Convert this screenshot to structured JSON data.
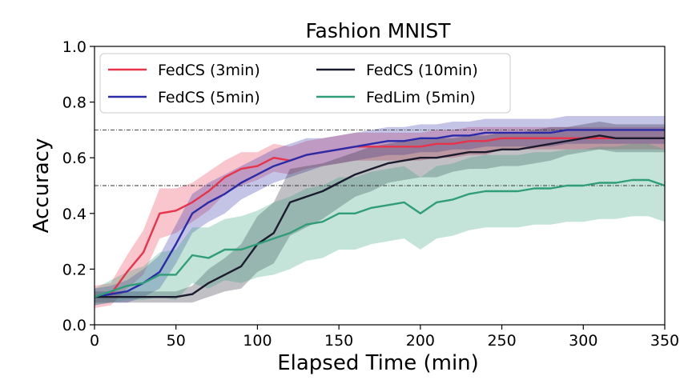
{
  "chart_data": {
    "type": "line",
    "title": "Fashion MNIST",
    "xlabel": "Elapsed Time (min)",
    "ylabel": "Accuracy",
    "xlim": [
      0,
      350
    ],
    "ylim": [
      0.0,
      1.0
    ],
    "xticks": [
      "0",
      "50",
      "100",
      "150",
      "200",
      "250",
      "300",
      "350"
    ],
    "yticks": [
      "0.0",
      "0.2",
      "0.4",
      "0.6",
      "0.8",
      "1.0"
    ],
    "grid": false,
    "legend_position": "top-left",
    "reference_lines": [
      0.7,
      0.5
    ],
    "series": [
      {
        "name": "FedCS (3min)",
        "color": "#e8334a",
        "x": [
          0,
          10,
          20,
          30,
          40,
          50,
          60,
          70,
          80,
          90,
          100,
          110,
          120,
          130,
          140,
          150,
          160,
          170,
          180,
          190,
          200,
          210,
          220,
          230,
          240,
          250,
          260,
          270,
          280,
          290,
          300,
          310,
          320,
          330,
          340,
          350
        ],
        "y": [
          0.1,
          0.11,
          0.19,
          0.26,
          0.4,
          0.41,
          0.44,
          0.48,
          0.53,
          0.56,
          0.57,
          0.6,
          0.59,
          0.61,
          0.62,
          0.63,
          0.64,
          0.64,
          0.64,
          0.64,
          0.64,
          0.65,
          0.65,
          0.66,
          0.66,
          0.67,
          0.67,
          0.67,
          0.67,
          0.67,
          0.67,
          0.67,
          0.67,
          0.67,
          0.67,
          0.67
        ],
        "band": [
          0.04,
          0.04,
          0.06,
          0.08,
          0.09,
          0.08,
          0.07,
          0.07,
          0.06,
          0.06,
          0.05,
          0.05,
          0.05,
          0.05,
          0.05,
          0.05,
          0.05,
          0.05,
          0.05,
          0.05,
          0.05,
          0.05,
          0.05,
          0.05,
          0.05,
          0.04,
          0.04,
          0.04,
          0.04,
          0.04,
          0.04,
          0.04,
          0.04,
          0.04,
          0.04,
          0.04
        ]
      },
      {
        "name": "FedCS (5min)",
        "color": "#2a2ba8",
        "x": [
          0,
          10,
          20,
          30,
          40,
          50,
          60,
          70,
          80,
          90,
          100,
          110,
          120,
          130,
          140,
          150,
          160,
          170,
          180,
          190,
          200,
          210,
          220,
          230,
          240,
          250,
          260,
          270,
          280,
          290,
          300,
          310,
          320,
          330,
          340,
          350
        ],
        "y": [
          0.1,
          0.11,
          0.12,
          0.15,
          0.19,
          0.29,
          0.4,
          0.44,
          0.47,
          0.51,
          0.54,
          0.57,
          0.59,
          0.61,
          0.62,
          0.63,
          0.64,
          0.65,
          0.66,
          0.66,
          0.67,
          0.67,
          0.68,
          0.68,
          0.69,
          0.69,
          0.69,
          0.69,
          0.69,
          0.7,
          0.7,
          0.7,
          0.7,
          0.7,
          0.7,
          0.7
        ],
        "band": [
          0.03,
          0.03,
          0.04,
          0.05,
          0.06,
          0.07,
          0.07,
          0.07,
          0.07,
          0.06,
          0.06,
          0.06,
          0.06,
          0.06,
          0.05,
          0.05,
          0.05,
          0.05,
          0.05,
          0.05,
          0.05,
          0.05,
          0.05,
          0.05,
          0.05,
          0.05,
          0.05,
          0.05,
          0.05,
          0.05,
          0.05,
          0.05,
          0.05,
          0.05,
          0.05,
          0.05
        ]
      },
      {
        "name": "FedCS (10min)",
        "color": "#1b1b2e",
        "x": [
          0,
          10,
          20,
          30,
          40,
          50,
          60,
          70,
          80,
          90,
          100,
          110,
          120,
          130,
          140,
          150,
          160,
          170,
          180,
          190,
          200,
          210,
          220,
          230,
          240,
          250,
          260,
          270,
          280,
          290,
          300,
          310,
          320,
          330,
          340,
          350
        ],
        "y": [
          0.1,
          0.1,
          0.1,
          0.1,
          0.1,
          0.1,
          0.11,
          0.15,
          0.18,
          0.21,
          0.29,
          0.33,
          0.44,
          0.46,
          0.48,
          0.51,
          0.54,
          0.56,
          0.58,
          0.59,
          0.6,
          0.6,
          0.61,
          0.62,
          0.62,
          0.63,
          0.63,
          0.64,
          0.65,
          0.66,
          0.67,
          0.68,
          0.67,
          0.67,
          0.67,
          0.67
        ],
        "band": [
          0.02,
          0.02,
          0.02,
          0.02,
          0.02,
          0.02,
          0.03,
          0.05,
          0.06,
          0.08,
          0.1,
          0.11,
          0.12,
          0.11,
          0.1,
          0.09,
          0.08,
          0.08,
          0.07,
          0.07,
          0.07,
          0.07,
          0.06,
          0.06,
          0.06,
          0.06,
          0.06,
          0.06,
          0.06,
          0.05,
          0.05,
          0.05,
          0.05,
          0.05,
          0.05,
          0.05
        ]
      },
      {
        "name": "FedLim (5min)",
        "color": "#2f9e78",
        "x": [
          0,
          10,
          20,
          30,
          40,
          50,
          60,
          70,
          80,
          90,
          100,
          110,
          120,
          130,
          140,
          150,
          160,
          170,
          180,
          190,
          200,
          210,
          220,
          230,
          240,
          250,
          260,
          270,
          280,
          290,
          300,
          310,
          320,
          330,
          340,
          350
        ],
        "y": [
          0.1,
          0.12,
          0.14,
          0.15,
          0.18,
          0.18,
          0.25,
          0.24,
          0.27,
          0.27,
          0.29,
          0.31,
          0.33,
          0.36,
          0.37,
          0.4,
          0.4,
          0.42,
          0.43,
          0.44,
          0.4,
          0.44,
          0.45,
          0.47,
          0.48,
          0.48,
          0.48,
          0.49,
          0.49,
          0.5,
          0.5,
          0.51,
          0.51,
          0.52,
          0.52,
          0.5
        ],
        "band": [
          0.03,
          0.04,
          0.05,
          0.06,
          0.08,
          0.09,
          0.1,
          0.11,
          0.11,
          0.12,
          0.12,
          0.13,
          0.13,
          0.13,
          0.13,
          0.13,
          0.13,
          0.13,
          0.13,
          0.13,
          0.13,
          0.13,
          0.13,
          0.13,
          0.13,
          0.13,
          0.13,
          0.13,
          0.13,
          0.13,
          0.13,
          0.13,
          0.13,
          0.13,
          0.13,
          0.13
        ]
      }
    ]
  }
}
